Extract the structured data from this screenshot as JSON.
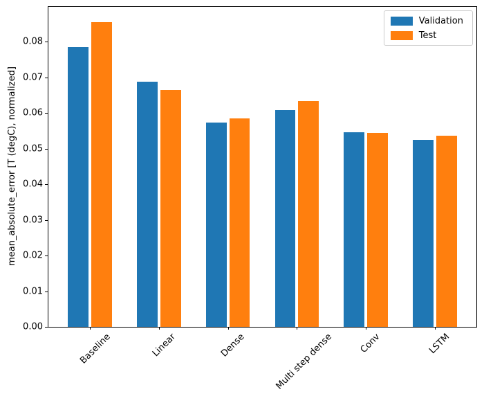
{
  "chart_data": {
    "type": "bar",
    "title": "",
    "xlabel": "",
    "ylabel": "mean_absolute_error [T (degC), normalized]",
    "categories": [
      "Baseline",
      "Linear",
      "Dense",
      "Multi step dense",
      "Conv",
      "LSTM"
    ],
    "series": [
      {
        "name": "Validation",
        "color": "#1f77b4",
        "values": [
          0.0785,
          0.0687,
          0.0573,
          0.0607,
          0.0546,
          0.0525
        ]
      },
      {
        "name": "Test",
        "color": "#ff7f0e",
        "values": [
          0.0854,
          0.0665,
          0.0584,
          0.0634,
          0.0544,
          0.0535
        ]
      }
    ],
    "ylim": [
      0,
      0.0897
    ],
    "yticks": [
      {
        "value": 0.0,
        "label": "0.00"
      },
      {
        "value": 0.01,
        "label": "0.01"
      },
      {
        "value": 0.02,
        "label": "0.02"
      },
      {
        "value": 0.03,
        "label": "0.03"
      },
      {
        "value": 0.04,
        "label": "0.04"
      },
      {
        "value": 0.05,
        "label": "0.05"
      },
      {
        "value": 0.06,
        "label": "0.06"
      },
      {
        "value": 0.07,
        "label": "0.07"
      },
      {
        "value": 0.08,
        "label": "0.08"
      }
    ],
    "xlim": [
      -0.602,
      5.602
    ],
    "bar_width": 0.3,
    "group_offset": 0.17,
    "xtick_rotation": 45,
    "grid": false,
    "legend": {
      "position": "upper right",
      "entries": [
        "Validation",
        "Test"
      ]
    },
    "axis_color": "#000000",
    "background_color": "#ffffff"
  }
}
